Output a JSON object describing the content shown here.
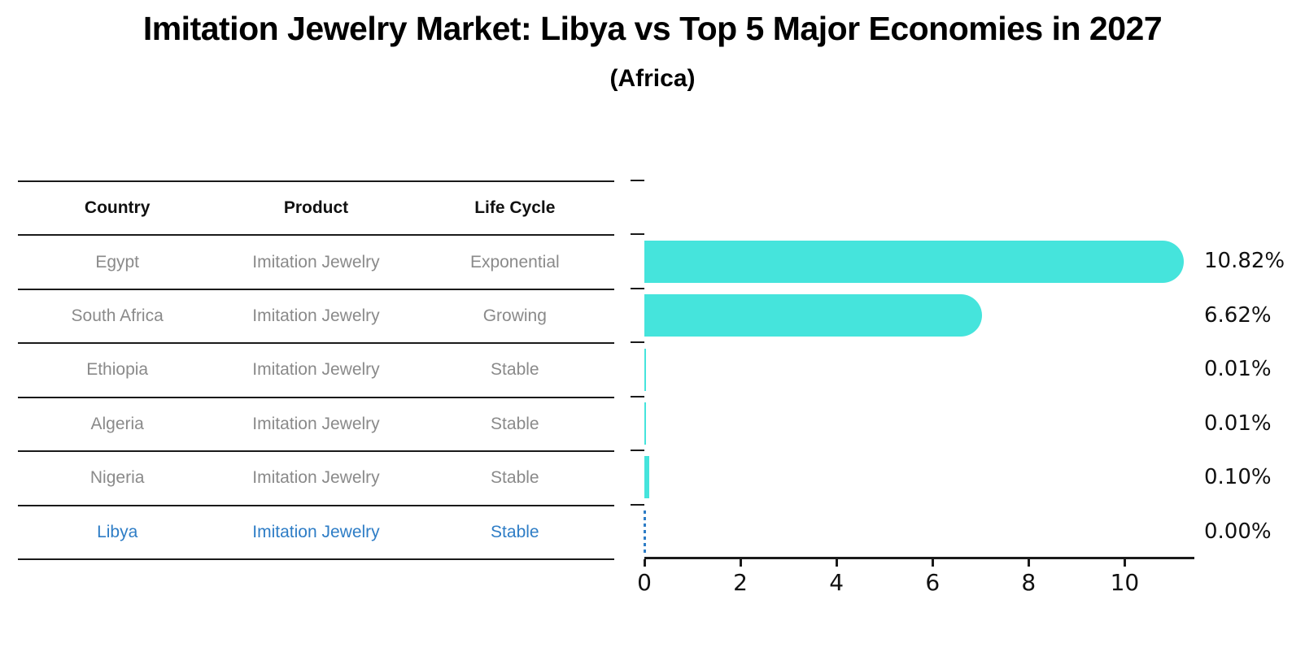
{
  "title": "Imitation Jewelry Market: Libya vs Top 5 Major Economies in 2027",
  "subtitle": "(Africa)",
  "colors": {
    "bar": "#45E4DC",
    "highlight_blue": "#2E7DC6",
    "muted_text": "#8a8a8a",
    "line": "#1a1a1a",
    "background": "#ffffff"
  },
  "table": {
    "headers": [
      "Country",
      "Product",
      "Life Cycle"
    ],
    "rows": [
      {
        "country": "Egypt",
        "product": "Imitation Jewelry",
        "life_cycle": "Exponential",
        "highlight": false
      },
      {
        "country": "South Africa",
        "product": "Imitation Jewelry",
        "life_cycle": "Growing",
        "highlight": false
      },
      {
        "country": "Ethiopia",
        "product": "Imitation Jewelry",
        "life_cycle": "Stable",
        "highlight": false
      },
      {
        "country": "Algeria",
        "product": "Imitation Jewelry",
        "life_cycle": "Stable",
        "highlight": false
      },
      {
        "country": "Nigeria",
        "product": "Imitation Jewelry",
        "life_cycle": "Stable",
        "highlight": false
      },
      {
        "country": "Libya",
        "product": "Imitation Jewelry",
        "life_cycle": "Stable",
        "highlight": true
      }
    ]
  },
  "chart_data": {
    "type": "bar",
    "orientation": "horizontal",
    "categories": [
      "Egypt",
      "South Africa",
      "Ethiopia",
      "Algeria",
      "Nigeria",
      "Libya"
    ],
    "values": [
      10.82,
      6.62,
      0.01,
      0.01,
      0.1,
      0.0
    ],
    "value_labels": [
      "10.82%",
      "6.62%",
      "0.01%",
      "0.01%",
      "0.10%",
      "0.00%"
    ],
    "x_ticks": [
      0,
      2,
      4,
      6,
      8,
      10
    ],
    "xlim": [
      0,
      11.45
    ],
    "grid": false,
    "legend": "none",
    "bar_color": "#45E4DC",
    "highlight": {
      "category": "Libya",
      "color": "#2E7DC6",
      "style": "dashed-outline-zero-bar"
    }
  }
}
